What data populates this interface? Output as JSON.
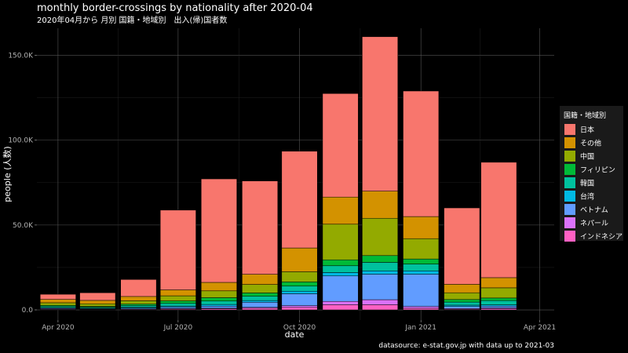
{
  "chart_data": {
    "type": "bar",
    "stacked": true,
    "title": "monthly border-crossings by nationality after 2020-04",
    "subtitle": "2020年04月から 月別 国籍・地域別　出入(帰)国者数",
    "xlabel": "date",
    "ylabel": "people (人数)",
    "caption": "datasource: e-stat.gov.jp with data up to 2021-03",
    "legend_title": "国籍・地域別",
    "legend_position": "right",
    "grid": true,
    "ylim": [
      -6000,
      166000
    ],
    "xlim": [
      "2020-03-16",
      "2021-04-12"
    ],
    "y_ticks": [
      0,
      50000,
      100000,
      150000
    ],
    "y_tick_labels": [
      "0.0",
      "50.0K",
      "100.0K",
      "150.0K"
    ],
    "x_ticks": [
      "2020-04-01",
      "2020-07-01",
      "2020-10-01",
      "2021-01-01",
      "2021-04-01"
    ],
    "x_tick_labels": [
      "Apr 2020",
      "Jul 2020",
      "Oct 2020",
      "Jan 2021",
      "Apr 2021"
    ],
    "x": [
      "2020-04-01",
      "2020-05-01",
      "2020-06-01",
      "2020-07-01",
      "2020-08-01",
      "2020-09-01",
      "2020-10-01",
      "2020-11-01",
      "2020-12-01",
      "2021-01-01",
      "2021-02-01",
      "2021-03-01"
    ],
    "series": [
      {
        "name": "インドネシア",
        "color": "#FF61C3",
        "values": [
          300,
          200,
          300,
          500,
          700,
          1000,
          1500,
          3000,
          3000,
          1000,
          400,
          600
        ]
      },
      {
        "name": "ネパール",
        "color": "#DB72FB",
        "values": [
          200,
          200,
          300,
          300,
          300,
          500,
          1000,
          2000,
          3000,
          1000,
          400,
          600
        ]
      },
      {
        "name": "ベトナム",
        "color": "#619CFF",
        "values": [
          500,
          300,
          500,
          800,
          1200,
          3000,
          7000,
          15000,
          15000,
          19000,
          1200,
          1000
        ]
      },
      {
        "name": "台湾",
        "color": "#00B9E3",
        "values": [
          300,
          300,
          500,
          700,
          1000,
          1000,
          1500,
          2000,
          2000,
          2000,
          800,
          800
        ]
      },
      {
        "name": "韓国",
        "color": "#00C19F",
        "values": [
          800,
          600,
          1000,
          1500,
          2000,
          2500,
          3000,
          4000,
          5000,
          4000,
          1800,
          2500
        ]
      },
      {
        "name": "フィリピン",
        "color": "#00BA38",
        "values": [
          600,
          500,
          800,
          1500,
          2000,
          2000,
          2500,
          3500,
          4000,
          3000,
          1500,
          1500
        ]
      },
      {
        "name": "中国",
        "color": "#93AA00",
        "values": [
          1500,
          1500,
          2000,
          3000,
          4000,
          5000,
          6000,
          21000,
          22000,
          12000,
          4000,
          6000
        ]
      },
      {
        "name": "その他",
        "color": "#D39200",
        "values": [
          2000,
          2000,
          2500,
          3500,
          5000,
          6000,
          14000,
          16000,
          16000,
          13000,
          5000,
          6000
        ]
      },
      {
        "name": "日本",
        "color": "#F8766D",
        "values": [
          3000,
          4500,
          10000,
          47000,
          61000,
          55000,
          57000,
          61000,
          91000,
          74000,
          45000,
          68000
        ]
      }
    ],
    "legend_order": [
      "日本",
      "その他",
      "中国",
      "フィリピン",
      "韓国",
      "台湾",
      "ベトナム",
      "ネパール",
      "インドネシア"
    ]
  }
}
